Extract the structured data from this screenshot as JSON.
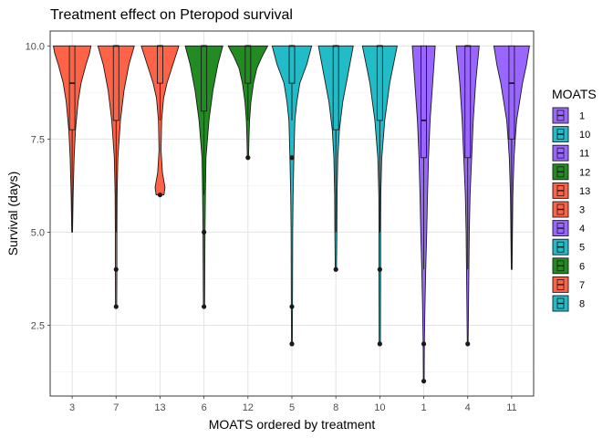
{
  "chart_data": {
    "type": "violin",
    "title": "Treatment effect on Pteropod survival",
    "xlabel": "MOATS ordered by treatment",
    "ylabel": "Survival (days)",
    "ylim": [
      0.6,
      10.4
    ],
    "y_ticks": [
      2.5,
      5.0,
      7.5,
      10.0
    ],
    "y_tick_labels": [
      "2.5",
      "5.0",
      "7.5",
      "10.0"
    ],
    "grid": true,
    "legend": {
      "title": "MOATS",
      "position": "right",
      "entries": [
        {
          "label": "1",
          "color": "#9966ff"
        },
        {
          "label": "10",
          "color": "#22bbc8"
        },
        {
          "label": "11",
          "color": "#9966ff"
        },
        {
          "label": "12",
          "color": "#228b22"
        },
        {
          "label": "13",
          "color": "#ff6347"
        },
        {
          "label": "3",
          "color": "#ff6347"
        },
        {
          "label": "4",
          "color": "#9966ff"
        },
        {
          "label": "5",
          "color": "#22bbc8"
        },
        {
          "label": "6",
          "color": "#228b22"
        },
        {
          "label": "7",
          "color": "#ff6347"
        },
        {
          "label": "8",
          "color": "#22bbc8"
        }
      ]
    },
    "categories": [
      "3",
      "7",
      "13",
      "6",
      "12",
      "5",
      "8",
      "10",
      "1",
      "4",
      "11"
    ],
    "series": [
      {
        "moats": "3",
        "color": "#ff6347",
        "box": {
          "q1": 7.75,
          "median": 9.0,
          "q3": 10.0,
          "lower": 5.0,
          "upper": 10.0
        },
        "outliers": [],
        "profile": [
          [
            5.0,
            0.02
          ],
          [
            6.0,
            0.05
          ],
          [
            7.0,
            0.1
          ],
          [
            7.75,
            0.17
          ],
          [
            8.5,
            0.3
          ],
          [
            9.0,
            0.45
          ],
          [
            9.5,
            0.7
          ],
          [
            9.8,
            0.88
          ],
          [
            10.0,
            0.95
          ]
        ]
      },
      {
        "moats": "7",
        "color": "#ff6347",
        "box": {
          "q1": 8.0,
          "median": 10.0,
          "q3": 10.0,
          "lower": 5.0,
          "upper": 10.0
        },
        "outliers": [
          4.0,
          3.0
        ],
        "profile": [
          [
            3.0,
            0.03
          ],
          [
            4.0,
            0.04
          ],
          [
            5.0,
            0.04
          ],
          [
            6.0,
            0.05
          ],
          [
            7.0,
            0.09
          ],
          [
            8.0,
            0.22
          ],
          [
            8.8,
            0.4
          ],
          [
            9.5,
            0.65
          ],
          [
            10.0,
            0.92
          ]
        ]
      },
      {
        "moats": "13",
        "color": "#ff6347",
        "box": {
          "q1": 9.0,
          "median": 10.0,
          "q3": 10.0,
          "lower": 8.0,
          "upper": 10.0
        },
        "outliers": [
          6.0
        ],
        "profile": [
          [
            6.0,
            0.2
          ],
          [
            6.2,
            0.25
          ],
          [
            6.6,
            0.12
          ],
          [
            7.2,
            0.05
          ],
          [
            8.0,
            0.08
          ],
          [
            8.6,
            0.18
          ],
          [
            9.0,
            0.35
          ],
          [
            9.5,
            0.65
          ],
          [
            10.0,
            0.95
          ]
        ]
      },
      {
        "moats": "6",
        "color": "#228b22",
        "box": {
          "q1": 8.25,
          "median": 10.0,
          "q3": 10.0,
          "lower": 6.0,
          "upper": 10.0
        },
        "outliers": [
          5.0,
          3.0
        ],
        "profile": [
          [
            3.0,
            0.03
          ],
          [
            4.0,
            0.04
          ],
          [
            5.0,
            0.05
          ],
          [
            6.0,
            0.07
          ],
          [
            7.0,
            0.1
          ],
          [
            8.0,
            0.25
          ],
          [
            8.8,
            0.45
          ],
          [
            9.5,
            0.7
          ],
          [
            10.0,
            0.95
          ]
        ]
      },
      {
        "moats": "12",
        "color": "#228b22",
        "box": {
          "q1": 9.0,
          "median": 10.0,
          "q3": 10.0,
          "lower": 8.0,
          "upper": 10.0
        },
        "outliers": [
          7.0
        ],
        "profile": [
          [
            7.0,
            0.03
          ],
          [
            7.5,
            0.05
          ],
          [
            8.0,
            0.08
          ],
          [
            8.5,
            0.15
          ],
          [
            9.0,
            0.28
          ],
          [
            9.4,
            0.45
          ],
          [
            9.7,
            0.7
          ],
          [
            10.0,
            1.0
          ]
        ]
      },
      {
        "moats": "5",
        "color": "#22bbc8",
        "box": {
          "q1": 9.0,
          "median": 10.0,
          "q3": 10.0,
          "lower": 8.0,
          "upper": 10.0
        },
        "outliers": [
          7.0,
          3.0,
          2.0
        ],
        "profile": [
          [
            2.0,
            0.02
          ],
          [
            3.0,
            0.03
          ],
          [
            5.0,
            0.04
          ],
          [
            6.0,
            0.06
          ],
          [
            7.0,
            0.1
          ],
          [
            8.0,
            0.15
          ],
          [
            8.5,
            0.25
          ],
          [
            9.0,
            0.4
          ],
          [
            9.5,
            0.75
          ],
          [
            10.0,
            1.0
          ]
        ]
      },
      {
        "moats": "8",
        "color": "#22bbc8",
        "box": {
          "q1": 7.75,
          "median": 10.0,
          "q3": 10.0,
          "lower": 5.0,
          "upper": 10.0
        },
        "outliers": [
          4.0
        ],
        "profile": [
          [
            4.0,
            0.03
          ],
          [
            5.0,
            0.05
          ],
          [
            6.0,
            0.06
          ],
          [
            7.0,
            0.1
          ],
          [
            7.75,
            0.18
          ],
          [
            8.5,
            0.35
          ],
          [
            9.2,
            0.6
          ],
          [
            10.0,
            0.88
          ]
        ]
      },
      {
        "moats": "10",
        "color": "#22bbc8",
        "box": {
          "q1": 8.0,
          "median": 10.0,
          "q3": 10.0,
          "lower": 5.0,
          "upper": 10.0
        },
        "outliers": [
          4.0,
          2.0
        ],
        "profile": [
          [
            2.0,
            0.03
          ],
          [
            4.0,
            0.04
          ],
          [
            5.0,
            0.04
          ],
          [
            6.0,
            0.05
          ],
          [
            7.0,
            0.1
          ],
          [
            8.0,
            0.25
          ],
          [
            9.0,
            0.5
          ],
          [
            10.0,
            0.88
          ]
        ]
      },
      {
        "moats": "1",
        "color": "#9966ff",
        "box": {
          "q1": 7.0,
          "median": 8.0,
          "q3": 10.0,
          "lower": 4.0,
          "upper": 10.0
        },
        "outliers": [
          2.0,
          1.0
        ],
        "profile": [
          [
            1.0,
            0.02
          ],
          [
            2.0,
            0.03
          ],
          [
            3.0,
            0.06
          ],
          [
            4.0,
            0.1
          ],
          [
            5.0,
            0.15
          ],
          [
            6.0,
            0.19
          ],
          [
            7.0,
            0.24
          ],
          [
            8.0,
            0.32
          ],
          [
            9.0,
            0.45
          ],
          [
            10.0,
            0.58
          ]
        ]
      },
      {
        "moats": "4",
        "color": "#9966ff",
        "box": {
          "q1": 7.0,
          "median": 10.0,
          "q3": 10.0,
          "lower": 4.0,
          "upper": 10.0
        },
        "outliers": [
          2.0
        ],
        "profile": [
          [
            2.0,
            0.02
          ],
          [
            3.0,
            0.04
          ],
          [
            4.0,
            0.06
          ],
          [
            5.0,
            0.08
          ],
          [
            6.0,
            0.12
          ],
          [
            7.0,
            0.2
          ],
          [
            8.0,
            0.28
          ],
          [
            9.0,
            0.4
          ],
          [
            10.0,
            0.58
          ]
        ]
      },
      {
        "moats": "11",
        "color": "#9966ff",
        "box": {
          "q1": 7.5,
          "median": 9.0,
          "q3": 10.0,
          "lower": 4.0,
          "upper": 10.0
        },
        "outliers": [],
        "profile": [
          [
            4.0,
            0.02
          ],
          [
            5.0,
            0.04
          ],
          [
            6.0,
            0.06
          ],
          [
            7.0,
            0.12
          ],
          [
            7.5,
            0.18
          ],
          [
            8.0,
            0.25
          ],
          [
            8.5,
            0.4
          ],
          [
            9.0,
            0.55
          ],
          [
            9.5,
            0.75
          ],
          [
            10.0,
            0.9
          ]
        ]
      }
    ]
  }
}
